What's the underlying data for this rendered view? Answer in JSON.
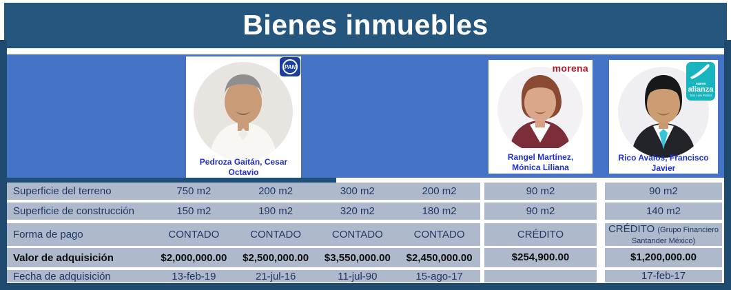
{
  "title": "Bienes inmuebles",
  "cards": [
    {
      "name": "Pedroza Gaitán, Cesar Octavio",
      "party": "PAN"
    },
    {
      "name": "Rangel Martínez, Mónica Liliana",
      "party": "morena"
    },
    {
      "name": "Rico Avalos, Francisco Javier",
      "party": "alianza",
      "party_sub_top": "nueva",
      "party_sub_bottom": "San Luis Potosí"
    }
  ],
  "table": {
    "rows": [
      {
        "key": "superficie-terreno",
        "label": "Superficie del terreno",
        "cells": [
          "750 m2",
          "200 m2",
          "300 m2",
          "200 m2",
          "90 m2",
          "90 m2"
        ]
      },
      {
        "key": "superficie-construccion",
        "label": "Superficie de construcción",
        "cells": [
          "150 m2",
          "190 m2",
          "320 m2",
          "180 m2",
          "90 m2",
          "140 m2"
        ]
      },
      {
        "key": "forma-pago",
        "label": "Forma de pago",
        "cells": [
          "CONTADO",
          "CONTADO",
          "CONTADO",
          "CONTADO",
          "CRÉDITO",
          {
            "main": "CRÉDITO",
            "note": "(Grupo Financiero Santander México)"
          }
        ]
      },
      {
        "key": "valor-adquisicion",
        "label": "Valor de adquisición",
        "bold": true,
        "cells": [
          "$2,000,000.00",
          "$2,500,000.00",
          "$3,550,000.00",
          "$2,450,000.00",
          "$254,900.00",
          "$1,200,000.00"
        ]
      },
      {
        "key": "fecha-adquisicion",
        "label": "Fecha de adquisición",
        "cells": [
          "13-feb-19",
          "21-jul-16",
          "11-jul-90",
          "15-ago-17",
          "",
          "17-feb-17"
        ]
      }
    ]
  },
  "chart_data": {
    "type": "table",
    "title": "Bienes inmuebles",
    "column_owners": [
      "Pedroza Gaitán, Cesar Octavio (PAN)",
      "Pedroza Gaitán, Cesar Octavio (PAN)",
      "Pedroza Gaitán, Cesar Octavio (PAN)",
      "Pedroza Gaitán, Cesar Octavio (PAN)",
      "Rangel Martínez, Mónica Liliana (morena)",
      "Rico Avalos, Francisco Javier (nueva alianza)"
    ],
    "row_labels": [
      "Superficie del terreno",
      "Superficie de construcción",
      "Forma de pago",
      "Valor de adquisición",
      "Fecha de adquisición"
    ],
    "rows": [
      [
        "750 m2",
        "200 m2",
        "300 m2",
        "200 m2",
        "90 m2",
        "90 m2"
      ],
      [
        "150 m2",
        "190 m2",
        "320 m2",
        "180 m2",
        "90 m2",
        "140 m2"
      ],
      [
        "CONTADO",
        "CONTADO",
        "CONTADO",
        "CONTADO",
        "CRÉDITO",
        "CRÉDITO (Grupo Financiero Santander México)"
      ],
      [
        "$2,000,000.00",
        "$2,500,000.00",
        "$3,550,000.00",
        "$2,450,000.00",
        "$254,900.00",
        "$1,200,000.00"
      ],
      [
        "13-feb-19",
        "21-jul-16",
        "11-jul-90",
        "15-ago-17",
        "",
        "17-feb-17"
      ]
    ]
  },
  "colors": {
    "header_bg": "#25567D",
    "banner_bg": "#4472C4",
    "frame": "#1E4A70",
    "row_bg": "#AEB9CB",
    "row_text": "#1F3864",
    "value_bold_text": "#0D0D0D",
    "caption_blue": "#1F2FD4",
    "pan_blue": "#1B3F9E",
    "morena_red": "#B01E24",
    "alianza_teal": "#19B5BF"
  }
}
